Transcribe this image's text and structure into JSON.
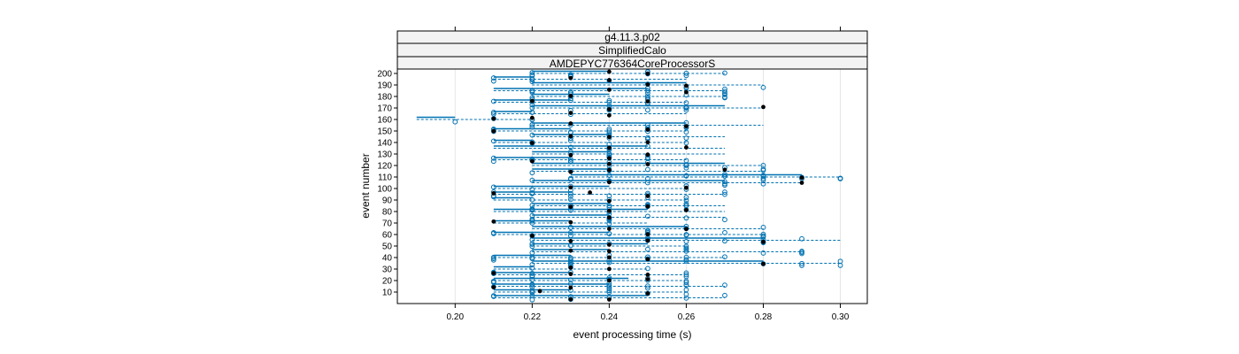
{
  "chart_data": {
    "type": "scatter",
    "title": "",
    "strips": [
      "g4.11.3.p02",
      "SimplifiedCalo",
      "AMDEPYC776364CoreProcessorS"
    ],
    "xlabel": "event processing time (s)",
    "ylabel": "event number",
    "xlim": [
      0.185,
      0.307
    ],
    "ylim": [
      0,
      200
    ],
    "x_ticks": [
      {
        "value": 0.2,
        "label": "0.20"
      },
      {
        "value": 0.22,
        "label": "0.22"
      },
      {
        "value": 0.24,
        "label": "0.24"
      },
      {
        "value": 0.26,
        "label": "0.26"
      },
      {
        "value": 0.28,
        "label": "0.28"
      },
      {
        "value": 0.3,
        "label": "0.30"
      }
    ],
    "y_ticks": [
      {
        "value": 10,
        "label": "10"
      },
      {
        "value": 20,
        "label": "20"
      },
      {
        "value": 30,
        "label": "30"
      },
      {
        "value": 40,
        "label": "40"
      },
      {
        "value": 50,
        "label": "50"
      },
      {
        "value": 60,
        "label": "60"
      },
      {
        "value": 70,
        "label": "70"
      },
      {
        "value": 80,
        "label": "80"
      },
      {
        "value": 90,
        "label": "90"
      },
      {
        "value": 100,
        "label": "100"
      },
      {
        "value": 110,
        "label": "110"
      },
      {
        "value": 120,
        "label": "120"
      },
      {
        "value": 130,
        "label": "130"
      },
      {
        "value": 140,
        "label": "140"
      },
      {
        "value": 150,
        "label": "150"
      },
      {
        "value": 160,
        "label": "160"
      },
      {
        "value": 170,
        "label": "170"
      },
      {
        "value": 180,
        "label": "180"
      },
      {
        "value": 190,
        "label": "190"
      },
      {
        "value": 200,
        "label": "200"
      }
    ],
    "grid": true,
    "legend": "none",
    "colors": {
      "open_points": "#0072b2",
      "solid_points": "#000000",
      "mean_line": "#0072b2",
      "range_line": "#0072b2",
      "strip_bg": "#f2f2f2",
      "grid": "#e6e6e6"
    },
    "rows": [
      {
        "event": 5,
        "min": 0.21,
        "mean": 0.25,
        "max": 0.27,
        "solid": [
          0.23,
          0.24
        ]
      },
      {
        "event": 10,
        "min": 0.21,
        "mean": 0.23,
        "max": 0.26,
        "solid": [
          0.222,
          0.25
        ]
      },
      {
        "event": 15,
        "min": 0.21,
        "mean": 0.24,
        "max": 0.27,
        "solid": [
          0.21,
          0.23
        ]
      },
      {
        "event": 20,
        "min": 0.21,
        "mean": 0.245,
        "max": 0.26,
        "solid": [
          0.24,
          0.25
        ]
      },
      {
        "event": 25,
        "min": 0.21,
        "mean": 0.23,
        "max": 0.26,
        "solid": [
          0.21,
          0.23,
          0.25
        ]
      },
      {
        "event": 30,
        "min": 0.21,
        "mean": 0.22,
        "max": 0.25,
        "solid": [
          0.23,
          0.24
        ]
      },
      {
        "event": 35,
        "min": 0.22,
        "mean": 0.28,
        "max": 0.3,
        "solid": [
          0.28
        ]
      },
      {
        "event": 40,
        "min": 0.21,
        "mean": 0.23,
        "max": 0.27,
        "solid": [
          0.24,
          0.25
        ]
      },
      {
        "event": 45,
        "min": 0.22,
        "mean": 0.24,
        "max": 0.29,
        "solid": [
          0.23,
          0.24
        ]
      },
      {
        "event": 50,
        "min": 0.22,
        "mean": 0.25,
        "max": 0.26,
        "solid": [
          0.24
        ]
      },
      {
        "event": 55,
        "min": 0.22,
        "mean": 0.28,
        "max": 0.3,
        "solid": [
          0.23,
          0.25,
          0.28
        ]
      },
      {
        "event": 60,
        "min": 0.21,
        "mean": 0.24,
        "max": 0.28,
        "solid": [
          0.22,
          0.25
        ]
      },
      {
        "event": 65,
        "min": 0.22,
        "mean": 0.26,
        "max": 0.28,
        "solid": [
          0.24,
          0.26
        ]
      },
      {
        "event": 70,
        "min": 0.21,
        "mean": 0.23,
        "max": 0.25,
        "solid": [
          0.21,
          0.23
        ]
      },
      {
        "event": 75,
        "min": 0.22,
        "mean": 0.24,
        "max": 0.27,
        "solid": [
          0.24
        ]
      },
      {
        "event": 80,
        "min": 0.21,
        "mean": 0.25,
        "max": 0.27,
        "solid": [
          0.24,
          0.26
        ]
      },
      {
        "event": 85,
        "min": 0.22,
        "mean": 0.24,
        "max": 0.27,
        "solid": [
          0.23,
          0.25
        ]
      },
      {
        "event": 90,
        "min": 0.21,
        "mean": 0.22,
        "max": 0.26,
        "solid": [
          0.24
        ]
      },
      {
        "event": 95,
        "min": 0.21,
        "mean": 0.23,
        "max": 0.27,
        "solid": [
          0.21,
          0.235,
          0.25
        ]
      },
      {
        "event": 100,
        "min": 0.21,
        "mean": 0.24,
        "max": 0.26,
        "solid": [
          0.23,
          0.26
        ]
      },
      {
        "event": 105,
        "min": 0.22,
        "mean": 0.27,
        "max": 0.29,
        "solid": [
          0.24,
          0.29
        ]
      },
      {
        "event": 110,
        "min": 0.23,
        "mean": 0.29,
        "max": 0.3,
        "solid": [
          0.29
        ]
      },
      {
        "event": 115,
        "min": 0.22,
        "mean": 0.24,
        "max": 0.28,
        "solid": [
          0.23,
          0.24,
          0.27
        ]
      },
      {
        "event": 120,
        "min": 0.22,
        "mean": 0.27,
        "max": 0.28,
        "solid": [
          0.24,
          0.25
        ]
      },
      {
        "event": 125,
        "min": 0.21,
        "mean": 0.23,
        "max": 0.26,
        "solid": [
          0.22,
          0.24
        ]
      },
      {
        "event": 130,
        "min": 0.22,
        "mean": 0.24,
        "max": 0.27,
        "solid": [
          0.23,
          0.25
        ]
      },
      {
        "event": 135,
        "min": 0.21,
        "mean": 0.25,
        "max": 0.27,
        "solid": [
          0.24,
          0.26
        ]
      },
      {
        "event": 140,
        "min": 0.21,
        "mean": 0.22,
        "max": 0.26,
        "solid": [
          0.22,
          0.25
        ]
      },
      {
        "event": 145,
        "min": 0.22,
        "mean": 0.24,
        "max": 0.27,
        "solid": [
          0.23,
          0.24
        ]
      },
      {
        "event": 150,
        "min": 0.21,
        "mean": 0.23,
        "max": 0.26,
        "solid": [
          0.21,
          0.25
        ]
      },
      {
        "event": 155,
        "min": 0.22,
        "mean": 0.26,
        "max": 0.28,
        "solid": [
          0.23,
          0.26
        ]
      },
      {
        "event": 160,
        "min": 0.19,
        "mean": 0.2,
        "max": 0.22,
        "solid": [
          0.21,
          0.22
        ]
      },
      {
        "event": 165,
        "min": 0.21,
        "mean": 0.22,
        "max": 0.26,
        "solid": [
          0.23,
          0.24
        ]
      },
      {
        "event": 170,
        "min": 0.22,
        "mean": 0.27,
        "max": 0.28,
        "solid": [
          0.24,
          0.28
        ]
      },
      {
        "event": 175,
        "min": 0.21,
        "mean": 0.23,
        "max": 0.26,
        "solid": [
          0.22,
          0.25
        ]
      },
      {
        "event": 180,
        "min": 0.22,
        "mean": 0.24,
        "max": 0.27,
        "solid": [
          0.23
        ]
      },
      {
        "event": 185,
        "min": 0.21,
        "mean": 0.25,
        "max": 0.27,
        "solid": [
          0.24,
          0.26
        ]
      },
      {
        "event": 190,
        "min": 0.22,
        "mean": 0.26,
        "max": 0.28,
        "solid": [
          0.25,
          0.26
        ]
      },
      {
        "event": 195,
        "min": 0.21,
        "mean": 0.22,
        "max": 0.26,
        "solid": [
          0.23,
          0.24
        ]
      },
      {
        "event": 200,
        "min": 0.22,
        "mean": 0.24,
        "max": 0.27,
        "solid": [
          0.24,
          0.25
        ]
      }
    ]
  }
}
